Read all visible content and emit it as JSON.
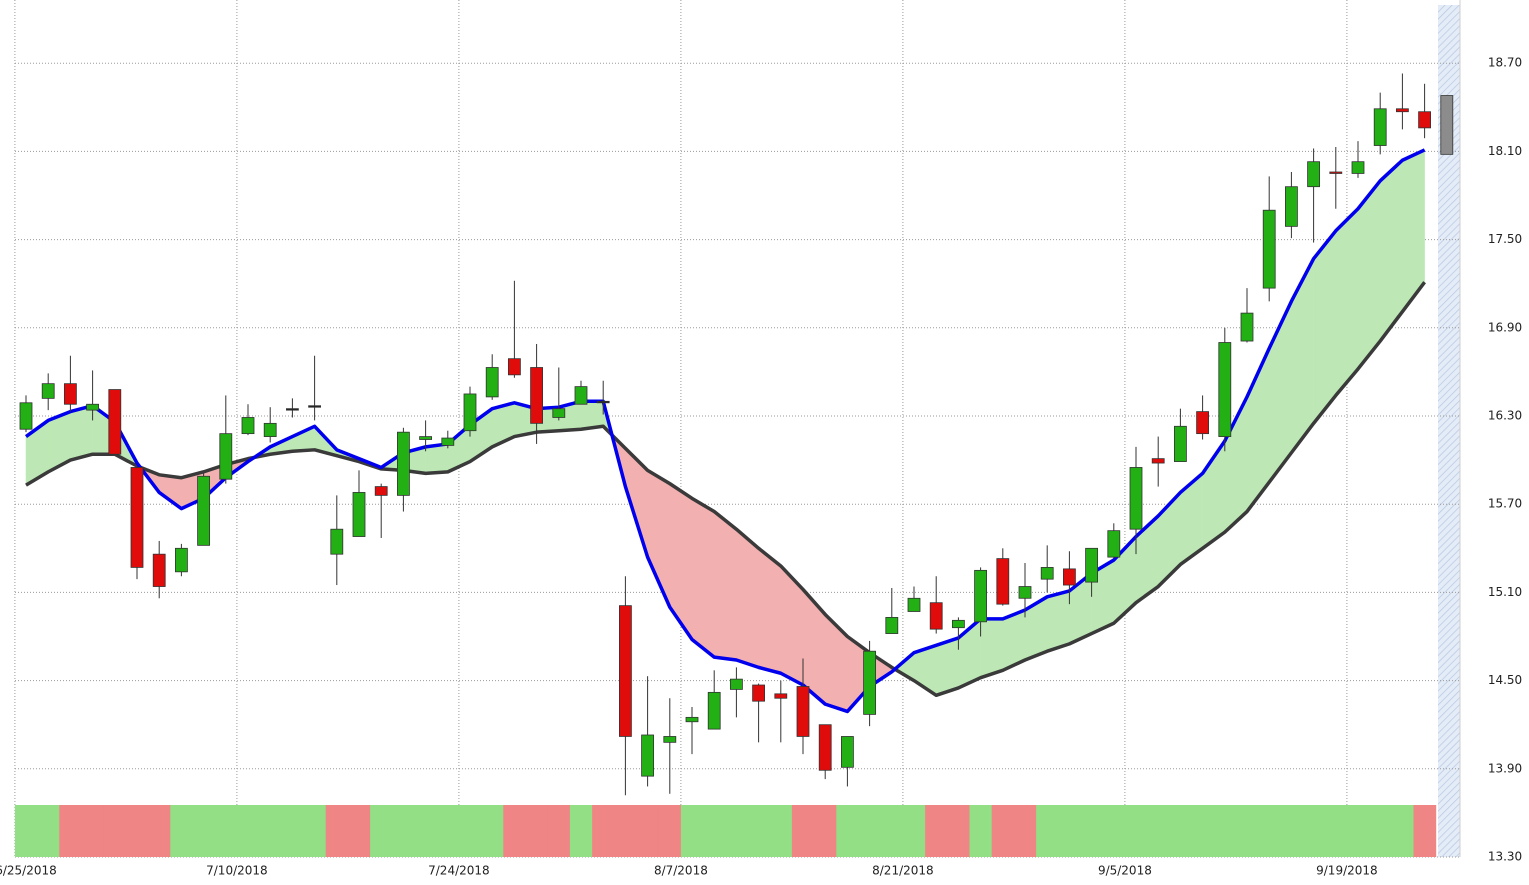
{
  "chart_data": {
    "type": "candlestick",
    "categories": [
      "6/25/2018",
      null,
      null,
      null,
      null,
      null,
      null,
      null,
      null,
      null,
      "7/10/2018",
      null,
      null,
      null,
      null,
      null,
      null,
      null,
      null,
      null,
      "7/24/2018",
      null,
      null,
      null,
      null,
      null,
      null,
      null,
      null,
      null,
      "8/7/2018",
      null,
      null,
      null,
      null,
      null,
      null,
      null,
      null,
      null,
      "8/21/2018",
      null,
      null,
      null,
      null,
      null,
      null,
      null,
      null,
      null,
      "9/5/2018",
      null,
      null,
      null,
      null,
      null,
      null,
      null,
      null,
      null,
      "9/19/2018",
      null,
      null,
      null,
      null
    ],
    "open": [
      16.21,
      16.42,
      16.52,
      16.34,
      16.48,
      15.95,
      15.36,
      15.24,
      15.42,
      15.87,
      16.18,
      16.16,
      16.35,
      16.37,
      15.36,
      15.48,
      15.82,
      15.76,
      16.14,
      16.1,
      16.2,
      16.43,
      16.69,
      16.63,
      16.29,
      16.38,
      16.4,
      15.01,
      13.85,
      14.08,
      14.22,
      14.17,
      14.44,
      14.47,
      14.41,
      14.46,
      14.2,
      13.91,
      14.27,
      14.82,
      14.97,
      15.03,
      14.86,
      14.9,
      15.33,
      15.06,
      15.19,
      15.26,
      15.17,
      15.34,
      15.53,
      16.01,
      15.99,
      16.33,
      16.16,
      16.81,
      17.17,
      17.59,
      17.86,
      17.96,
      17.95,
      18.14,
      18.39,
      18.37,
      18.08
    ],
    "high": [
      16.44,
      16.59,
      16.71,
      16.61,
      16.48,
      15.95,
      15.45,
      15.43,
      15.91,
      16.44,
      16.38,
      16.36,
      16.42,
      16.71,
      15.76,
      15.93,
      15.84,
      16.22,
      16.27,
      16.2,
      16.5,
      16.72,
      17.22,
      16.79,
      16.63,
      16.54,
      16.54,
      15.21,
      14.53,
      14.38,
      14.32,
      14.57,
      14.59,
      14.48,
      14.5,
      14.65,
      14.2,
      14.12,
      14.77,
      15.13,
      15.14,
      15.21,
      14.93,
      15.27,
      15.4,
      15.3,
      15.42,
      15.38,
      15.4,
      15.57,
      16.09,
      16.16,
      16.35,
      16.44,
      16.9,
      17.17,
      17.93,
      17.96,
      18.12,
      18.13,
      18.17,
      18.5,
      18.63,
      18.56,
      18.48
    ],
    "low": [
      16.19,
      16.34,
      16.33,
      16.27,
      16.04,
      15.19,
      15.06,
      15.21,
      15.42,
      15.84,
      16.17,
      16.12,
      16.29,
      16.27,
      15.15,
      15.48,
      15.47,
      15.65,
      16.06,
      16.08,
      16.16,
      16.41,
      16.56,
      16.11,
      16.27,
      16.38,
      16.31,
      13.72,
      13.78,
      13.73,
      14.0,
      14.17,
      14.25,
      14.08,
      14.08,
      14.0,
      13.83,
      13.78,
      14.19,
      14.82,
      14.97,
      14.82,
      14.71,
      14.8,
      15.01,
      14.93,
      15.1,
      15.02,
      15.07,
      15.33,
      15.36,
      15.82,
      15.99,
      16.14,
      16.06,
      16.8,
      17.08,
      17.51,
      17.48,
      17.71,
      17.92,
      18.08,
      18.25,
      18.19,
      18.08
    ],
    "close": [
      16.39,
      16.52,
      16.38,
      16.38,
      16.04,
      15.27,
      15.14,
      15.4,
      15.89,
      16.18,
      16.29,
      16.25,
      16.35,
      16.37,
      15.53,
      15.78,
      15.76,
      16.19,
      16.16,
      16.15,
      16.45,
      16.63,
      16.58,
      16.25,
      16.35,
      16.5,
      16.4,
      14.12,
      14.13,
      14.12,
      14.25,
      14.42,
      14.51,
      14.36,
      14.38,
      14.12,
      13.89,
      14.12,
      14.7,
      14.93,
      15.06,
      14.85,
      14.91,
      15.25,
      15.02,
      15.14,
      15.27,
      15.15,
      15.4,
      15.52,
      15.95,
      15.98,
      16.23,
      16.18,
      16.8,
      17.0,
      17.7,
      17.86,
      18.03,
      17.95,
      18.03,
      18.39,
      18.37,
      18.26,
      18.48
    ],
    "up_color": "#22b014",
    "down_color": "#e00b0b",
    "flat_color": "#222222",
    "last_color": "#8c8c8c",
    "moving_averages": [
      {
        "color": "#0000ee",
        "values": [
          16.16,
          16.27,
          16.33,
          16.37,
          16.26,
          15.98,
          15.78,
          15.67,
          15.74,
          15.88,
          15.99,
          16.09,
          16.16,
          16.23,
          16.07,
          16.01,
          15.95,
          16.05,
          16.09,
          16.11,
          16.24,
          16.35,
          16.39,
          16.35,
          16.36,
          16.4,
          16.4,
          15.82,
          15.34,
          15.0,
          14.78,
          14.66,
          14.64,
          14.59,
          14.55,
          14.47,
          14.34,
          14.29,
          14.46,
          14.56,
          14.69,
          14.74,
          14.79,
          14.92,
          14.92,
          14.98,
          15.07,
          15.11,
          15.23,
          15.32,
          15.48,
          15.62,
          15.78,
          15.91,
          16.13,
          16.43,
          16.76,
          17.08,
          17.37,
          17.56,
          17.71,
          17.9,
          18.04,
          18.11,
          null
        ]
      },
      {
        "color": "#3a3a3a",
        "values": [
          15.83,
          15.92,
          16.0,
          16.04,
          16.04,
          15.96,
          15.9,
          15.88,
          15.92,
          15.97,
          16.01,
          16.04,
          16.06,
          16.07,
          16.03,
          15.99,
          15.94,
          15.93,
          15.91,
          15.92,
          15.99,
          16.09,
          16.16,
          16.19,
          16.2,
          16.21,
          16.23,
          16.08,
          15.93,
          15.84,
          15.74,
          15.65,
          15.53,
          15.4,
          15.28,
          15.12,
          14.95,
          14.8,
          14.69,
          14.59,
          14.5,
          14.4,
          14.45,
          14.52,
          14.57,
          14.64,
          14.7,
          14.75,
          14.82,
          14.89,
          15.03,
          15.14,
          15.29,
          15.4,
          15.51,
          15.65,
          15.85,
          16.05,
          16.25,
          16.44,
          16.62,
          16.81,
          17.01,
          17.21,
          null
        ]
      }
    ],
    "fill_up_color": "#bde8b5",
    "fill_down_color": "#f3b0b0",
    "band_signal": [
      1,
      1,
      -1,
      -1,
      -1,
      -1,
      -1,
      1,
      1,
      1,
      1,
      1,
      1,
      1,
      -1,
      -1,
      1,
      1,
      1,
      1,
      1,
      1,
      -1,
      -1,
      -1,
      1,
      -1,
      -1,
      -1,
      -1,
      1,
      1,
      1,
      1,
      1,
      -1,
      -1,
      1,
      1,
      1,
      1,
      -1,
      -1,
      1,
      -1,
      -1,
      1,
      1,
      1,
      1,
      1,
      1,
      1,
      1,
      1,
      1,
      1,
      1,
      1,
      1,
      1,
      1,
      1,
      -1,
      null
    ],
    "band_up_color": "#92df86",
    "band_down_color": "#f08585",
    "ylim": [
      13.3,
      19.13
    ],
    "yticks": [
      {
        "value": 13.3,
        "label": "13.30"
      },
      {
        "value": 13.9,
        "label": "13.90"
      },
      {
        "value": 14.5,
        "label": "14.50"
      },
      {
        "value": 15.1,
        "label": "15.10"
      },
      {
        "value": 15.7,
        "label": "15.70"
      },
      {
        "value": 16.3,
        "label": "16.30"
      },
      {
        "value": 16.9,
        "label": "16.90"
      },
      {
        "value": 17.5,
        "label": "17.50"
      },
      {
        "value": 18.1,
        "label": "18.10"
      },
      {
        "value": 18.7,
        "label": "18.70"
      }
    ],
    "grid": true
  }
}
